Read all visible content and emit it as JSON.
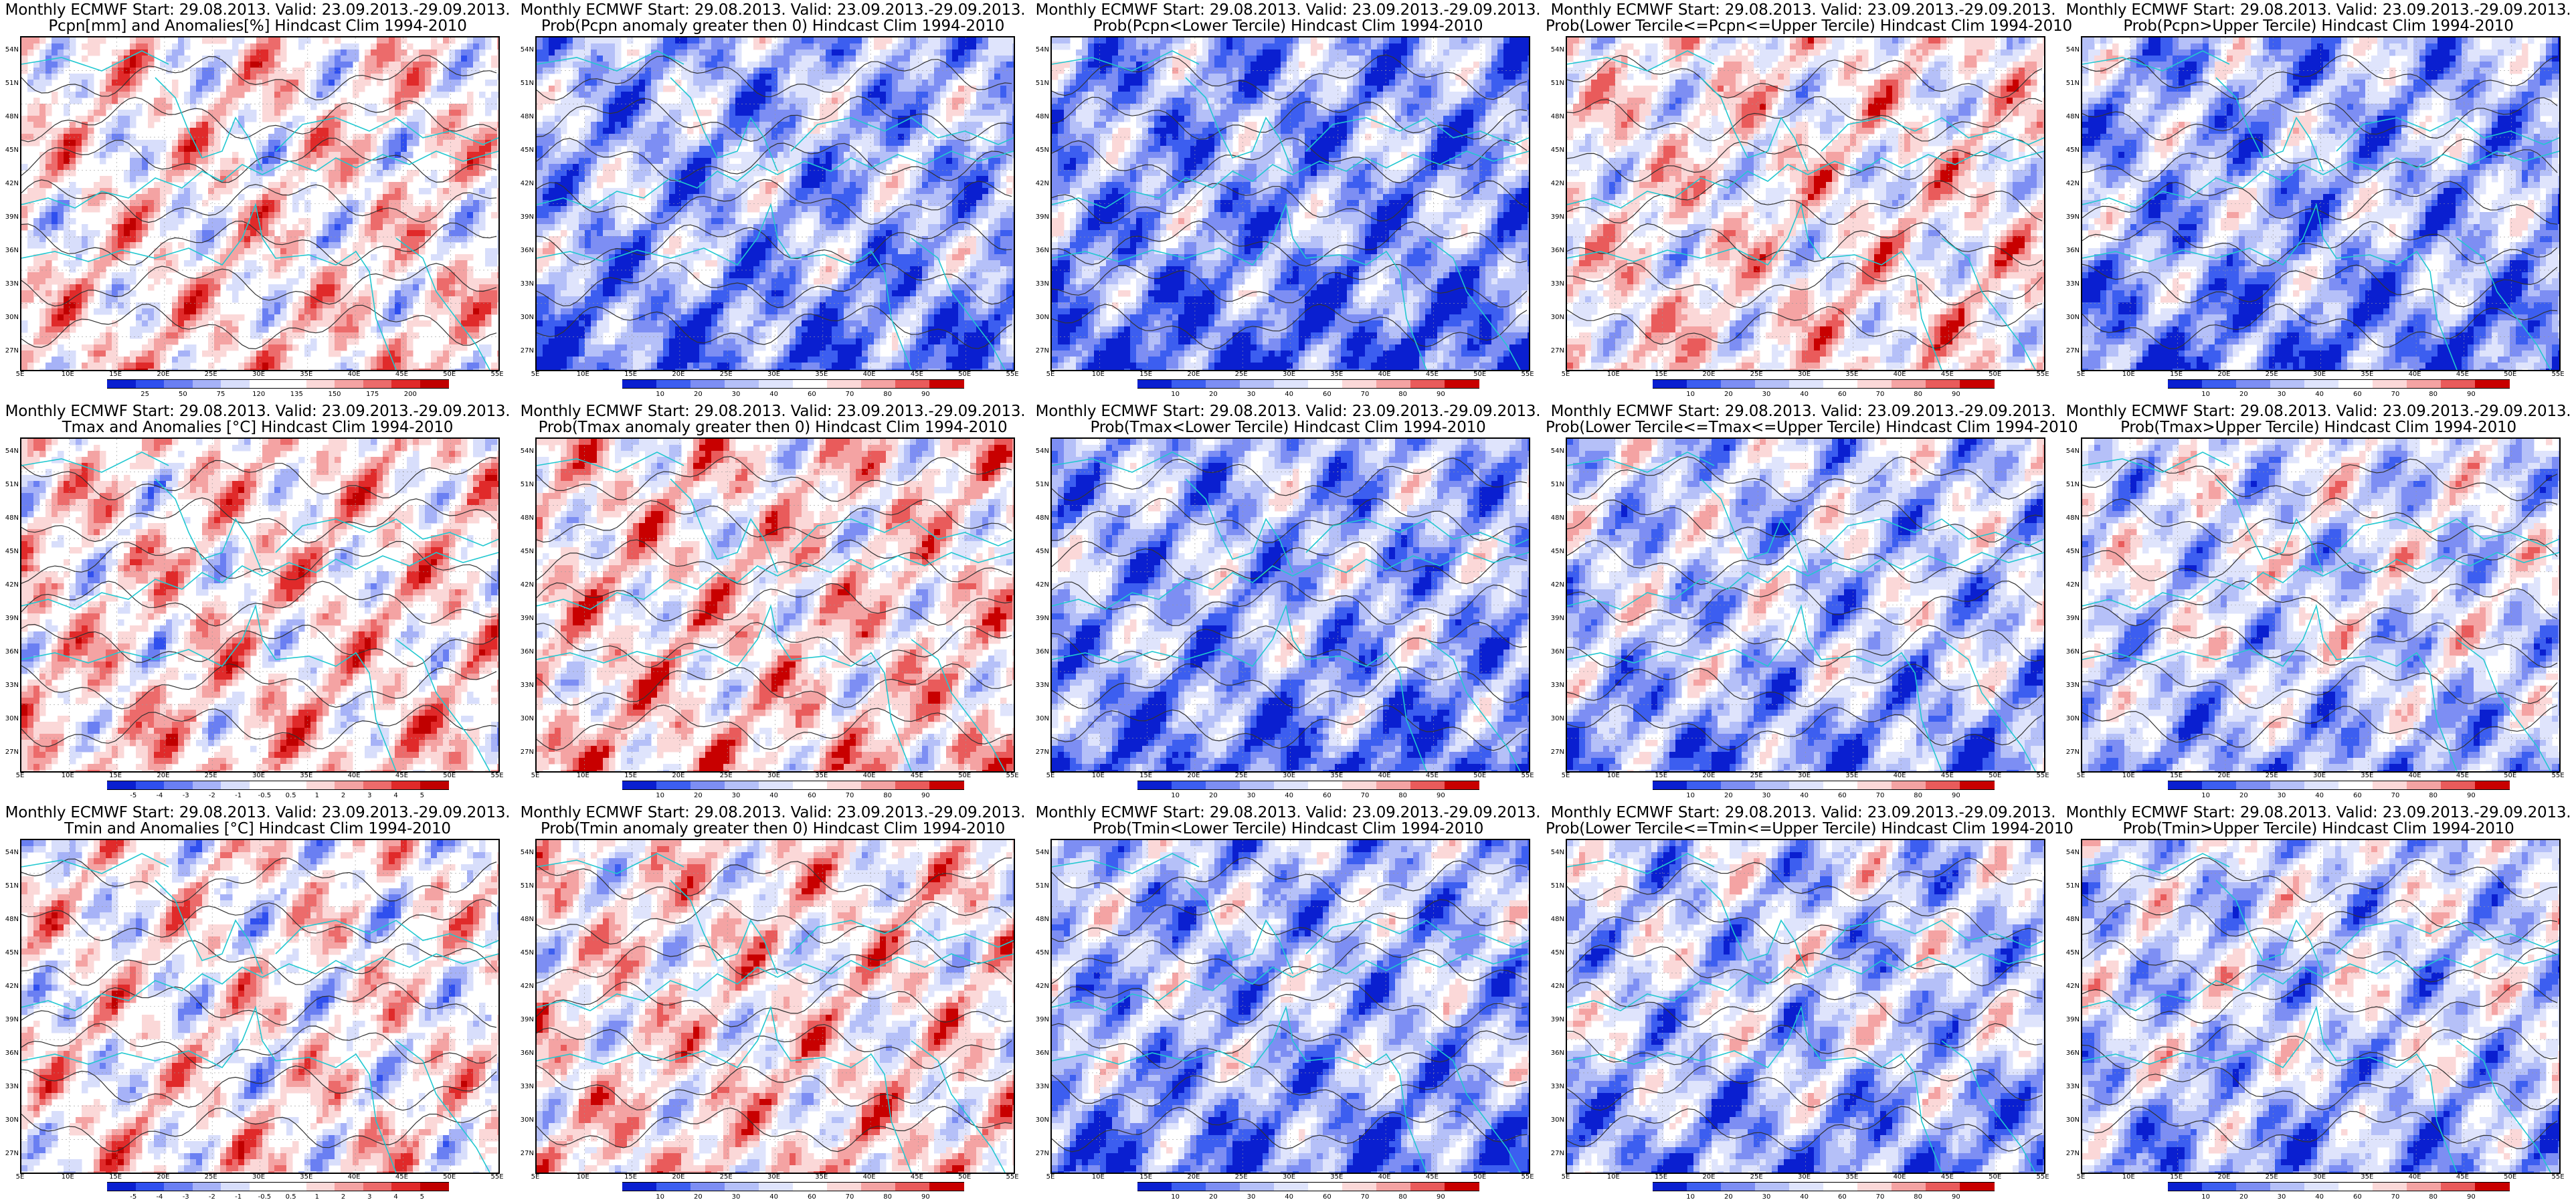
{
  "title_line1": "Monthly ECMWF Start: 29.08.2013. Valid: 23.09.2013.-29.09.2013.",
  "lat_labels": [
    "54N",
    "51N",
    "48N",
    "45N",
    "42N",
    "39N",
    "36N",
    "33N",
    "30N",
    "27N"
  ],
  "lon_labels": [
    "5E",
    "10E",
    "15E",
    "20E",
    "25E",
    "30E",
    "35E",
    "40E",
    "45E",
    "50E",
    "55E"
  ],
  "colors": {
    "anomaly": [
      "#0a1fd0",
      "#2f4fee",
      "#6a7ff2",
      "#a6b2f7",
      "#d8defb",
      "#ffffff",
      "#ffffff",
      "#fbd8d8",
      "#f4a3a3",
      "#ec6b6b",
      "#e02a2a",
      "#c00000"
    ],
    "prob": [
      "#0a1fd0",
      "#3c5ef0",
      "#7d8ef3",
      "#b5c0f8",
      "#dfe4fc",
      "#ffffff",
      "#fbd8d8",
      "#f4a3a3",
      "#e95b5b",
      "#c80000"
    ],
    "coast": "#22c8d0",
    "contour": "#333333"
  },
  "panels": [
    {
      "id": "pcpn-anom",
      "line2": "Pcpn[mm] and Anomalies[%] Hindcast Clim 1994-2010",
      "field": "anom",
      "bias": 0.1,
      "scale": [
        "25",
        "50",
        "75",
        "120",
        "135",
        "150",
        "175",
        "200"
      ]
    },
    {
      "id": "pcpn-pos",
      "line2": "Prob(Pcpn anomaly greater then 0) Hindcast Clim 1994-2010",
      "field": "prob",
      "bias": -0.35,
      "scale": [
        "10",
        "20",
        "30",
        "40",
        "60",
        "70",
        "80",
        "90"
      ]
    },
    {
      "id": "pcpn-lower",
      "line2": "Prob(Pcpn<Lower Tercile) Hindcast Clim 1994-2010",
      "field": "prob",
      "bias": -0.45,
      "scale": [
        "10",
        "20",
        "30",
        "40",
        "60",
        "70",
        "80",
        "90"
      ]
    },
    {
      "id": "pcpn-middle",
      "line2": "Prob(Lower Tercile<=Pcpn<=Upper Tercile) Hindcast Clim 1994-2010",
      "field": "prob",
      "bias": 0.15,
      "scale": [
        "10",
        "20",
        "30",
        "40",
        "60",
        "70",
        "80",
        "90"
      ]
    },
    {
      "id": "pcpn-upper",
      "line2": "Prob(Pcpn>Upper Tercile) Hindcast Clim 1994-2010",
      "field": "prob",
      "bias": -0.35,
      "scale": [
        "10",
        "20",
        "30",
        "40",
        "60",
        "70",
        "80",
        "90"
      ]
    },
    {
      "id": "tmax-anom",
      "line2": "Tmax and Anomalies [°C] Hindcast Clim 1994-2010",
      "field": "anom",
      "bias": 0.15,
      "scale": [
        "-5",
        "-4",
        "-3",
        "-2",
        "-1",
        "-0.5",
        "0.5",
        "1",
        "2",
        "3",
        "4",
        "5"
      ]
    },
    {
      "id": "tmax-pos",
      "line2": "Prob(Tmax anomaly greater then 0) Hindcast Clim 1994-2010",
      "field": "prob",
      "bias": 0.25,
      "scale": [
        "10",
        "20",
        "30",
        "40",
        "60",
        "70",
        "80",
        "90"
      ]
    },
    {
      "id": "tmax-lower",
      "line2": "Prob(Tmax<Lower Tercile) Hindcast Clim 1994-2010",
      "field": "prob",
      "bias": -0.35,
      "scale": [
        "10",
        "20",
        "30",
        "40",
        "60",
        "70",
        "80",
        "90"
      ]
    },
    {
      "id": "tmax-middle",
      "line2": "Prob(Lower Tercile<=Tmax<=Upper Tercile) Hindcast Clim 1994-2010",
      "field": "prob",
      "bias": -0.2,
      "scale": [
        "10",
        "20",
        "30",
        "40",
        "60",
        "70",
        "80",
        "90"
      ]
    },
    {
      "id": "tmax-upper",
      "line2": "Prob(Tmax>Upper Tercile) Hindcast Clim 1994-2010",
      "field": "prob",
      "bias": -0.1,
      "scale": [
        "10",
        "20",
        "30",
        "40",
        "60",
        "70",
        "80",
        "90"
      ]
    },
    {
      "id": "tmin-anom",
      "line2": "Tmin and Anomalies [°C] Hindcast Clim 1994-2010",
      "field": "anom",
      "bias": 0.05,
      "scale": [
        "-5",
        "-4",
        "-3",
        "-2",
        "-1",
        "-0.5",
        "0.5",
        "1",
        "2",
        "3",
        "4",
        "5"
      ]
    },
    {
      "id": "tmin-pos",
      "line2": "Prob(Tmin anomaly greater then 0) Hindcast Clim 1994-2010",
      "field": "prob",
      "bias": 0.2,
      "scale": [
        "10",
        "20",
        "30",
        "40",
        "60",
        "70",
        "80",
        "90"
      ]
    },
    {
      "id": "tmin-lower",
      "line2": "Prob(Tmin<Lower Tercile) Hindcast Clim 1994-2010",
      "field": "prob",
      "bias": -0.3,
      "scale": [
        "10",
        "20",
        "30",
        "40",
        "60",
        "70",
        "80",
        "90"
      ]
    },
    {
      "id": "tmin-middle",
      "line2": "Prob(Lower Tercile<=Tmin<=Upper Tercile) Hindcast Clim 1994-2010",
      "field": "prob",
      "bias": -0.2,
      "scale": [
        "10",
        "20",
        "30",
        "40",
        "60",
        "70",
        "80",
        "90"
      ]
    },
    {
      "id": "tmin-upper",
      "line2": "Prob(Tmin>Upper Tercile) Hindcast Clim 1994-2010",
      "field": "prob",
      "bias": -0.15,
      "scale": [
        "10",
        "20",
        "30",
        "40",
        "60",
        "70",
        "80",
        "90"
      ]
    }
  ]
}
